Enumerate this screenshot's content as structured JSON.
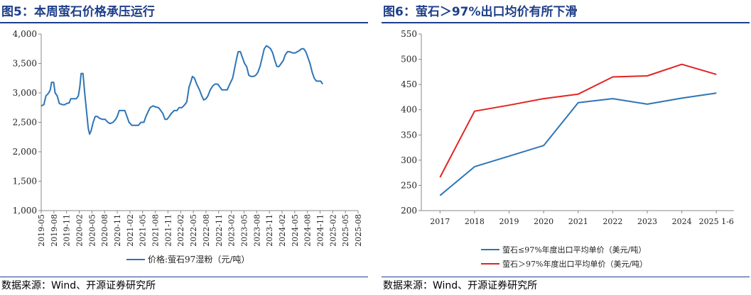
{
  "left": {
    "title": "图5：本周萤石价格承压运行",
    "source": "数据来源：Wind、开源证券研究所",
    "chart_data": {
      "type": "line",
      "title": "",
      "xlabel": "",
      "ylabel": "",
      "ylim": [
        1000,
        4000
      ],
      "yticks": [
        "1,000",
        "1,500",
        "2,000",
        "2,500",
        "3,000",
        "3,500",
        "4,000"
      ],
      "ytick_values": [
        1000,
        1500,
        2000,
        2500,
        3000,
        3500,
        4000
      ],
      "xticks": [
        "2019-05",
        "2019-08",
        "2019-11",
        "2020-02",
        "2020-05",
        "2020-08",
        "2020-11",
        "2021-02",
        "2021-05",
        "2021-08",
        "2021-11",
        "2022-02",
        "2022-05",
        "2022-08",
        "2022-11",
        "2023-02",
        "2023-05",
        "2023-08",
        "2023-11",
        "2024-02",
        "2024-05",
        "2024-08",
        "2024-11",
        "2025-02",
        "2025-05",
        "2025-08"
      ],
      "x_start": "2019-05",
      "legend_position": "bottom",
      "grid": false,
      "series": [
        {
          "name": "价格:萤石97湿粉（元/吨）",
          "color": "#2e75b6",
          "points": [
            [
              "2019-05-01",
              2780
            ],
            [
              "2019-05-20",
              2800
            ],
            [
              "2019-06-05",
              2950
            ],
            [
              "2019-06-25",
              3000
            ],
            [
              "2019-07-05",
              3050
            ],
            [
              "2019-07-15",
              3180
            ],
            [
              "2019-07-30",
              3180
            ],
            [
              "2019-08-10",
              3000
            ],
            [
              "2019-08-25",
              2950
            ],
            [
              "2019-09-10",
              2820
            ],
            [
              "2019-10-01",
              2800
            ],
            [
              "2019-10-20",
              2800
            ],
            [
              "2019-11-01",
              2820
            ],
            [
              "2019-11-20",
              2830
            ],
            [
              "2019-12-01",
              2900
            ],
            [
              "2019-12-20",
              2900
            ],
            [
              "2020-01-10",
              2900
            ],
            [
              "2020-01-25",
              2950
            ],
            [
              "2020-02-05",
              3100
            ],
            [
              "2020-02-15",
              3330
            ],
            [
              "2020-02-28",
              3330
            ],
            [
              "2020-03-10",
              3000
            ],
            [
              "2020-03-25",
              2650
            ],
            [
              "2020-04-05",
              2400
            ],
            [
              "2020-04-15",
              2300
            ],
            [
              "2020-04-25",
              2350
            ],
            [
              "2020-05-10",
              2500
            ],
            [
              "2020-05-25",
              2600
            ],
            [
              "2020-06-10",
              2600
            ],
            [
              "2020-06-25",
              2570
            ],
            [
              "2020-07-15",
              2550
            ],
            [
              "2020-08-05",
              2550
            ],
            [
              "2020-08-25",
              2500
            ],
            [
              "2020-09-10",
              2480
            ],
            [
              "2020-10-01",
              2500
            ],
            [
              "2020-10-20",
              2550
            ],
            [
              "2020-11-01",
              2600
            ],
            [
              "2020-11-15",
              2700
            ],
            [
              "2020-12-05",
              2700
            ],
            [
              "2020-12-25",
              2700
            ],
            [
              "2021-01-10",
              2600
            ],
            [
              "2021-01-25",
              2500
            ],
            [
              "2021-02-15",
              2450
            ],
            [
              "2021-03-10",
              2450
            ],
            [
              "2021-04-01",
              2450
            ],
            [
              "2021-04-20",
              2500
            ],
            [
              "2021-05-10",
              2500
            ],
            [
              "2021-05-25",
              2600
            ],
            [
              "2021-06-10",
              2680
            ],
            [
              "2021-06-25",
              2750
            ],
            [
              "2021-07-15",
              2780
            ],
            [
              "2021-08-05",
              2760
            ],
            [
              "2021-08-25",
              2750
            ],
            [
              "2021-09-10",
              2700
            ],
            [
              "2021-09-25",
              2650
            ],
            [
              "2021-10-10",
              2550
            ],
            [
              "2021-10-25",
              2550
            ],
            [
              "2021-11-10",
              2600
            ],
            [
              "2021-11-25",
              2650
            ],
            [
              "2021-12-15",
              2700
            ],
            [
              "2022-01-05",
              2700
            ],
            [
              "2022-01-20",
              2750
            ],
            [
              "2022-02-10",
              2750
            ],
            [
              "2022-03-01",
              2800
            ],
            [
              "2022-03-15",
              2850
            ],
            [
              "2022-04-01",
              3100
            ],
            [
              "2022-04-15",
              3200
            ],
            [
              "2022-04-25",
              3280
            ],
            [
              "2022-05-10",
              3250
            ],
            [
              "2022-05-25",
              3150
            ],
            [
              "2022-06-15",
              3050
            ],
            [
              "2022-07-01",
              2950
            ],
            [
              "2022-07-15",
              2880
            ],
            [
              "2022-08-01",
              2900
            ],
            [
              "2022-08-15",
              2950
            ],
            [
              "2022-09-01",
              3050
            ],
            [
              "2022-09-20",
              3120
            ],
            [
              "2022-10-05",
              3150
            ],
            [
              "2022-10-25",
              3150
            ],
            [
              "2022-11-10",
              3100
            ],
            [
              "2022-11-25",
              3050
            ],
            [
              "2022-12-10",
              3050
            ],
            [
              "2023-01-01",
              3050
            ],
            [
              "2023-01-20",
              3150
            ],
            [
              "2023-02-10",
              3250
            ],
            [
              "2023-02-25",
              3420
            ],
            [
              "2023-03-10",
              3600
            ],
            [
              "2023-03-20",
              3700
            ],
            [
              "2023-04-05",
              3700
            ],
            [
              "2023-04-20",
              3600
            ],
            [
              "2023-05-05",
              3500
            ],
            [
              "2023-05-20",
              3450
            ],
            [
              "2023-06-05",
              3300
            ],
            [
              "2023-06-20",
              3280
            ],
            [
              "2023-07-10",
              3280
            ],
            [
              "2023-07-25",
              3300
            ],
            [
              "2023-08-10",
              3350
            ],
            [
              "2023-08-25",
              3450
            ],
            [
              "2023-09-10",
              3600
            ],
            [
              "2023-09-25",
              3750
            ],
            [
              "2023-10-10",
              3800
            ],
            [
              "2023-10-25",
              3780
            ],
            [
              "2023-11-10",
              3750
            ],
            [
              "2023-11-25",
              3680
            ],
            [
              "2023-12-10",
              3550
            ],
            [
              "2023-12-25",
              3450
            ],
            [
              "2024-01-10",
              3450
            ],
            [
              "2024-01-25",
              3500
            ],
            [
              "2024-02-10",
              3550
            ],
            [
              "2024-02-25",
              3650
            ],
            [
              "2024-03-10",
              3700
            ],
            [
              "2024-03-25",
              3700
            ],
            [
              "2024-04-15",
              3680
            ],
            [
              "2024-05-05",
              3680
            ],
            [
              "2024-05-20",
              3700
            ],
            [
              "2024-06-05",
              3720
            ],
            [
              "2024-06-20",
              3750
            ],
            [
              "2024-07-05",
              3750
            ],
            [
              "2024-07-20",
              3700
            ],
            [
              "2024-08-05",
              3600
            ],
            [
              "2024-08-20",
              3500
            ],
            [
              "2024-09-05",
              3350
            ],
            [
              "2024-09-20",
              3250
            ],
            [
              "2024-10-05",
              3200
            ],
            [
              "2024-10-20",
              3200
            ],
            [
              "2024-11-05",
              3200
            ],
            [
              "2024-11-20",
              3150
            ]
          ]
        }
      ]
    }
  },
  "right": {
    "title": "图6：萤石＞97%出口均价有所下滑",
    "source": "数据来源：Wind、开源证券研究所",
    "chart_data": {
      "type": "line",
      "title": "",
      "xlabel": "",
      "ylabel": "",
      "ylim": [
        200,
        550
      ],
      "yticks": [
        "200",
        "250",
        "300",
        "350",
        "400",
        "450",
        "500",
        "550"
      ],
      "ytick_values": [
        200,
        250,
        300,
        350,
        400,
        450,
        500,
        550
      ],
      "categories": [
        "2017",
        "2018",
        "2019",
        "2020",
        "2021",
        "2022",
        "2023",
        "2024",
        "2025 1-6"
      ],
      "legend_position": "bottom",
      "grid": false,
      "series": [
        {
          "name": "萤石≤97%年度出口平均单价（美元/吨）",
          "color": "#2e75b6",
          "values": [
            230,
            287,
            308,
            329,
            414,
            422,
            411,
            423,
            433
          ]
        },
        {
          "name": "萤石＞97%年度出口平均单价（美元/吨）",
          "color": "#e32322",
          "values": [
            266,
            397,
            409,
            422,
            431,
            465,
            467,
            490,
            470
          ]
        }
      ]
    }
  }
}
